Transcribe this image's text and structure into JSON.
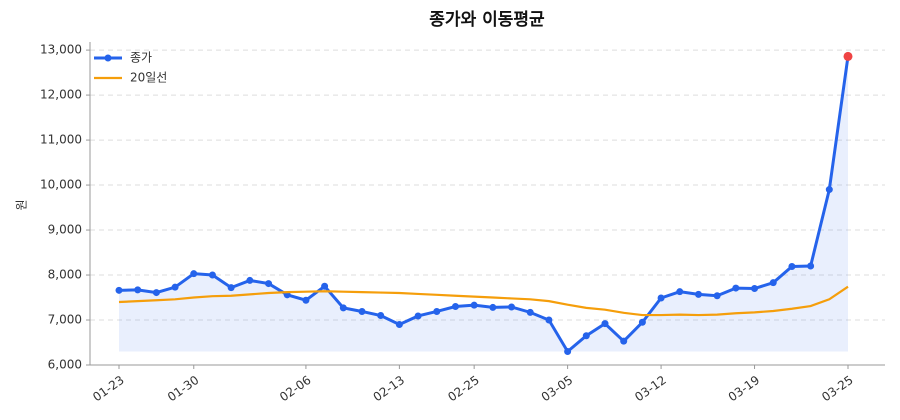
{
  "chart_data": {
    "type": "line",
    "title": "종가와 이동평균",
    "y_label": "원",
    "categories": [
      "01-23",
      null,
      null,
      null,
      "01-30",
      null,
      null,
      null,
      null,
      null,
      "02-06",
      null,
      null,
      null,
      null,
      "02-13",
      null,
      null,
      null,
      "02-25",
      null,
      null,
      null,
      null,
      "03-05",
      null,
      null,
      null,
      null,
      "03-12",
      null,
      null,
      null,
      null,
      "03-19",
      null,
      null,
      null,
      null,
      "03-25"
    ],
    "series": [
      {
        "name": "종가",
        "color": "#2563eb",
        "markers": true,
        "fill": true,
        "values": [
          7660,
          7670,
          7610,
          7730,
          8030,
          8000,
          7720,
          7880,
          7810,
          7560,
          7440,
          7750,
          7270,
          7190,
          7100,
          6900,
          7090,
          7190,
          7300,
          7330,
          7280,
          7290,
          7170,
          7000,
          6300,
          6650,
          6920,
          6530,
          6950,
          7490,
          7630,
          7570,
          7540,
          7710,
          7700,
          7830,
          8190,
          8200,
          9900,
          12860
        ]
      },
      {
        "name": "20일선",
        "color": "#f59e0b",
        "markers": false,
        "fill": false,
        "values": [
          7400,
          7420,
          7440,
          7460,
          7500,
          7530,
          7540,
          7570,
          7600,
          7620,
          7630,
          7640,
          7630,
          7620,
          7610,
          7600,
          7580,
          7560,
          7540,
          7520,
          7500,
          7480,
          7460,
          7420,
          7340,
          7270,
          7230,
          7160,
          7110,
          7110,
          7120,
          7110,
          7120,
          7150,
          7170,
          7200,
          7250,
          7310,
          7460,
          7740
        ]
      }
    ],
    "last_point_color": "#ef4444",
    "ylim": [
      6000,
      13180
    ],
    "yticks": [
      {
        "value": 6000,
        "label": "6,000"
      },
      {
        "value": 7000,
        "label": "7,000"
      },
      {
        "value": 8000,
        "label": "8,000"
      },
      {
        "value": 9000,
        "label": "9,000"
      },
      {
        "value": 10000,
        "label": "10,000"
      },
      {
        "value": 11000,
        "label": "11,000"
      },
      {
        "value": 12000,
        "label": "12,000"
      },
      {
        "value": 13000,
        "label": "13,000"
      }
    ],
    "grid": true,
    "legend": "upper left"
  }
}
